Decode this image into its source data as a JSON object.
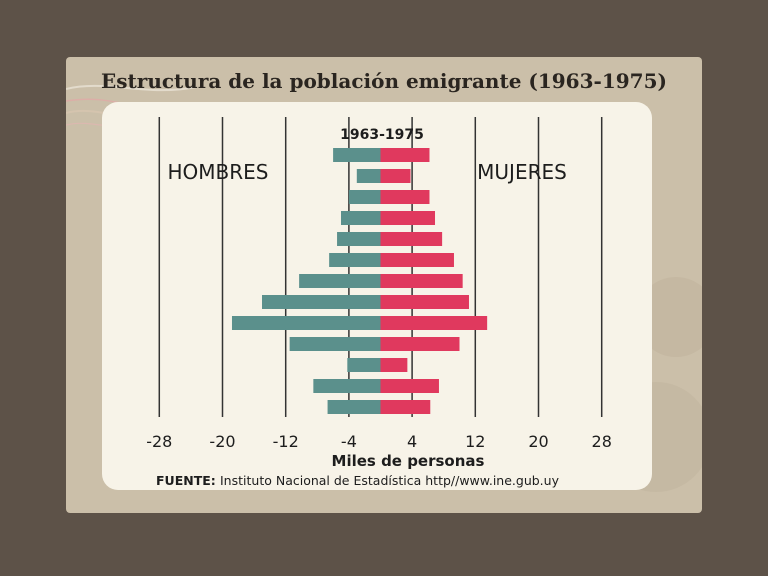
{
  "slide": {
    "title": "Estructura de la población emigrante (1963-1975)"
  },
  "colors": {
    "male": "#5b908c",
    "female": "#e0395e",
    "gridline": "#333333"
  },
  "chart_data": {
    "type": "bar",
    "orientation": "horizontal-population-pyramid",
    "subtitle": "1963-1975",
    "left_label": "HOMBRES",
    "right_label": "MUJERES",
    "xlabel": "Miles de personas",
    "xlim": [
      -28,
      28
    ],
    "x_ticks": [
      -28,
      -20,
      -12,
      -4,
      4,
      12,
      20,
      28
    ],
    "x_tick_labels": [
      "-28",
      "-20",
      "-12",
      "-4",
      "4",
      "12",
      "20",
      "28"
    ],
    "grid": "vertical",
    "series": [
      {
        "values": [
          -6.0,
          -3.0,
          -4.0,
          -5.0,
          -5.5,
          -6.5,
          -10.3,
          -15.0,
          -18.8,
          -11.5,
          -4.2,
          -8.5,
          -6.7
        ]
      },
      {
        "values": [
          6.2,
          3.8,
          6.2,
          6.9,
          7.8,
          9.3,
          10.4,
          11.2,
          13.5,
          10.0,
          3.4,
          7.4,
          6.3
        ]
      }
    ],
    "source_label": "FUENTE:",
    "source_text": "Instituto Nacional de Estadística http//www.ine.gub.uy"
  }
}
